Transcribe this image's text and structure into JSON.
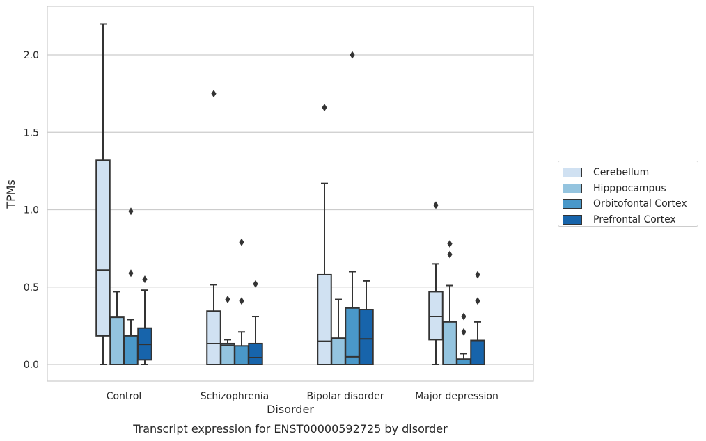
{
  "figure": {
    "caption": "Transcript expression for ENST00000592725 by disorder"
  },
  "colors": {
    "Cerebellum": "#d0e1f2",
    "Hipppocampus": "#94c4df",
    "Orbitofontal Cortex": "#4a98c9",
    "Prefrontal Cortex": "#1764ab",
    "outline": "#333333",
    "grid": "#cccccc",
    "axes_frame": "#cccccc"
  },
  "chart_data": {
    "type": "box",
    "title": "",
    "xlabel": "Disorder",
    "ylabel": "TPMs",
    "ylim": [
      -0.1,
      2.32
    ],
    "yticks": [
      "0.0",
      "0.5",
      "1.0",
      "1.5",
      "2.0"
    ],
    "grid": "horizontal",
    "legend_position": "right",
    "categories": [
      "Control",
      "Schizophrenia",
      "Bipolar disorder",
      "Major depression"
    ],
    "series": [
      {
        "name": "Cerebellum",
        "boxes": [
          {
            "whislo": 0.0,
            "q1": 0.185,
            "med": 0.61,
            "q3": 1.32,
            "whishi": 2.2,
            "fliers": []
          },
          {
            "whislo": 0.0,
            "q1": 0.0,
            "med": 0.135,
            "q3": 0.345,
            "whishi": 0.515,
            "fliers": [
              1.75
            ]
          },
          {
            "whislo": 0.0,
            "q1": 0.0,
            "med": 0.15,
            "q3": 0.58,
            "whishi": 1.17,
            "fliers": [
              1.66
            ]
          },
          {
            "whislo": 0.0,
            "q1": 0.16,
            "med": 0.31,
            "q3": 0.47,
            "whishi": 0.65,
            "fliers": [
              1.03
            ]
          }
        ]
      },
      {
        "name": "Hipppocampus",
        "boxes": [
          {
            "whislo": 0.0,
            "q1": 0.0,
            "med": 0.0,
            "q3": 0.305,
            "whishi": 0.47,
            "fliers": []
          },
          {
            "whislo": 0.0,
            "q1": 0.0,
            "med": 0.125,
            "q3": 0.135,
            "whishi": 0.16,
            "fliers": [
              0.42
            ]
          },
          {
            "whislo": 0.0,
            "q1": 0.0,
            "med": 0.0,
            "q3": 0.17,
            "whishi": 0.42,
            "fliers": []
          },
          {
            "whislo": 0.0,
            "q1": 0.0,
            "med": 0.0,
            "q3": 0.275,
            "whishi": 0.51,
            "fliers": [
              0.71,
              0.78
            ]
          }
        ]
      },
      {
        "name": "Orbitofontal Cortex",
        "boxes": [
          {
            "whislo": 0.0,
            "q1": 0.0,
            "med": 0.0,
            "q3": 0.185,
            "whishi": 0.29,
            "fliers": [
              0.59,
              0.99
            ]
          },
          {
            "whislo": 0.0,
            "q1": 0.0,
            "med": 0.0,
            "q3": 0.12,
            "whishi": 0.21,
            "fliers": [
              0.41,
              0.79
            ]
          },
          {
            "whislo": 0.0,
            "q1": 0.0,
            "med": 0.05,
            "q3": 0.365,
            "whishi": 0.6,
            "fliers": [
              2.0
            ]
          },
          {
            "whislo": 0.0,
            "q1": 0.0,
            "med": 0.0,
            "q3": 0.035,
            "whishi": 0.07,
            "fliers": [
              0.21,
              0.31
            ]
          }
        ]
      },
      {
        "name": "Prefrontal Cortex",
        "boxes": [
          {
            "whislo": 0.0,
            "q1": 0.03,
            "med": 0.13,
            "q3": 0.235,
            "whishi": 0.48,
            "fliers": [
              0.55
            ]
          },
          {
            "whislo": 0.0,
            "q1": 0.0,
            "med": 0.045,
            "q3": 0.135,
            "whishi": 0.31,
            "fliers": [
              0.52
            ]
          },
          {
            "whislo": 0.0,
            "q1": 0.0,
            "med": 0.165,
            "q3": 0.355,
            "whishi": 0.54,
            "fliers": []
          },
          {
            "whislo": 0.0,
            "q1": 0.0,
            "med": 0.0,
            "q3": 0.155,
            "whishi": 0.275,
            "fliers": [
              0.41,
              0.58
            ]
          }
        ]
      }
    ]
  }
}
